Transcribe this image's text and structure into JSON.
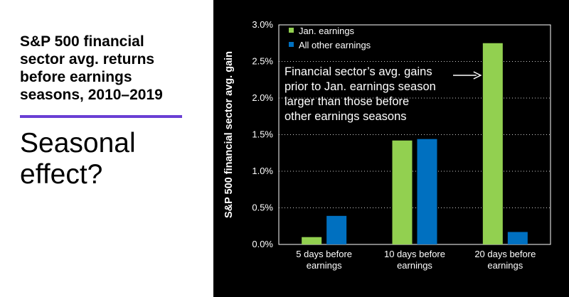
{
  "headline": {
    "lines": [
      "S&P 500 financial",
      "sector avg. returns",
      "before earnings",
      "seasons, 2010–2019"
    ]
  },
  "subhead": {
    "lines": [
      "Seasonal",
      "effect?"
    ]
  },
  "colors": {
    "accent": "#6a3fd4",
    "jan_series": "#92d050",
    "other_series": "#0070c0",
    "chart_background": "#000000"
  },
  "chart_data": {
    "type": "bar",
    "title": "",
    "xlabel": "",
    "ylabel": "S&P 500 financial sector avg. gain",
    "categories": [
      [
        "5 days before",
        "earnings"
      ],
      [
        "10 days before",
        "earnings"
      ],
      [
        "20 days before",
        "earnings"
      ]
    ],
    "series": [
      {
        "name": "Jan. earnings",
        "color": "#92d050",
        "values": [
          0.1,
          1.42,
          2.75
        ]
      },
      {
        "name": "All other earnings",
        "color": "#0070c0",
        "values": [
          0.39,
          1.44,
          0.17
        ]
      }
    ],
    "ylim": [
      0,
      3.0
    ],
    "yticks": [
      0,
      0.5,
      1.0,
      1.5,
      2.0,
      2.5,
      3.0
    ],
    "ytick_labels": [
      "0.0%",
      "0.5%",
      "1.0%",
      "1.5%",
      "2.0%",
      "2.5%",
      "3.0%"
    ],
    "grid": true,
    "legend_position": "top-left",
    "annotation": {
      "lines": [
        "Financial sector’s avg. gains",
        "prior to Jan. earnings season",
        "larger than those before",
        "other earnings seasons"
      ],
      "arrow_target": "20 days before earnings, Jan. earnings bar"
    }
  }
}
